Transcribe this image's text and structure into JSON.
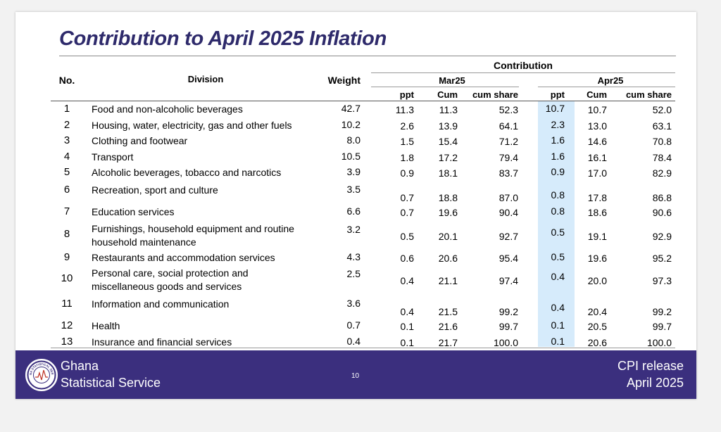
{
  "title": "Contribution to April 2025 Inflation",
  "headers": {
    "no": "No.",
    "division": "Division",
    "weight": "Weight",
    "contribution": "Contribution",
    "period1": "Mar25",
    "period2": "Apr25",
    "ppt": "ppt",
    "cum": "Cum",
    "cum_share": "cum share"
  },
  "rows": [
    {
      "no": "1",
      "division": [
        "Food and non-alcoholic beverages"
      ],
      "weight": "42.7",
      "mar": [
        "11.3",
        "11.3",
        "52.3"
      ],
      "apr": [
        "10.7",
        "10.7",
        "52.0"
      ]
    },
    {
      "no": "2",
      "division": [
        "Housing, water, electricity, gas and other fuels"
      ],
      "weight": "10.2",
      "mar": [
        "2.6",
        "13.9",
        "64.1"
      ],
      "apr": [
        "2.3",
        "13.0",
        "63.1"
      ]
    },
    {
      "no": "3",
      "division": [
        "Clothing and footwear"
      ],
      "weight": "8.0",
      "mar": [
        "1.5",
        "15.4",
        "71.2"
      ],
      "apr": [
        "1.6",
        "14.6",
        "70.8"
      ]
    },
    {
      "no": "4",
      "division": [
        "Transport"
      ],
      "weight": "10.5",
      "mar": [
        "1.8",
        "17.2",
        "79.4"
      ],
      "apr": [
        "1.6",
        "16.1",
        "78.4"
      ]
    },
    {
      "no": "5",
      "division": [
        "Alcoholic beverages, tobacco and narcotics"
      ],
      "weight": "3.9",
      "mar": [
        "0.9",
        "18.1",
        "83.7"
      ],
      "apr": [
        "0.9",
        "17.0",
        "82.9"
      ]
    },
    {
      "no": "6",
      "division": [
        "Recreation, sport and culture"
      ],
      "weight": "3.5",
      "mar": [
        "0.7",
        "18.8",
        "87.0"
      ],
      "apr": [
        "0.8",
        "17.8",
        "86.8"
      ]
    },
    {
      "no": "7",
      "division": [
        "Education services"
      ],
      "weight": "6.6",
      "mar": [
        "0.7",
        "19.6",
        "90.4"
      ],
      "apr": [
        "0.8",
        "18.6",
        "90.6"
      ]
    },
    {
      "no": "8",
      "division": [
        "Furnishings, household equipment and routine",
        "household maintenance"
      ],
      "weight": "3.2",
      "mar": [
        "0.5",
        "20.1",
        "92.7"
      ],
      "apr": [
        "0.5",
        "19.1",
        "92.9"
      ]
    },
    {
      "no": "9",
      "division": [
        "Restaurants and accommodation services"
      ],
      "weight": "4.3",
      "mar": [
        "0.6",
        "20.6",
        "95.4"
      ],
      "apr": [
        "0.5",
        "19.6",
        "95.2"
      ]
    },
    {
      "no": "10",
      "division": [
        "Personal care, social protection and",
        "miscellaneous goods and services"
      ],
      "weight": "2.5",
      "mar": [
        "0.4",
        "21.1",
        "97.4"
      ],
      "apr": [
        "0.4",
        "20.0",
        "97.3"
      ]
    },
    {
      "no": "11",
      "division": [
        "Information and communication"
      ],
      "weight": "3.6",
      "mar": [
        "0.4",
        "21.5",
        "99.2"
      ],
      "apr": [
        "0.4",
        "20.4",
        "99.2"
      ]
    },
    {
      "no": "12",
      "division": [
        "Health"
      ],
      "weight": "0.7",
      "mar": [
        "0.1",
        "21.6",
        "99.7"
      ],
      "apr": [
        "0.1",
        "20.5",
        "99.7"
      ]
    },
    {
      "no": "13",
      "division": [
        "Insurance and financial services"
      ],
      "weight": "0.4",
      "mar": [
        "0.1",
        "21.7",
        "100.0"
      ],
      "apr": [
        "0.1",
        "20.6",
        "100.0"
      ]
    }
  ],
  "footer": {
    "org_line1": "Ghana",
    "org_line2": "Statistical Service",
    "logo_text": "GHANA STATISTICAL SERVICE",
    "page_number": "10",
    "release_line1": "CPI release",
    "release_line2": "April  2025"
  },
  "colors": {
    "title": "#2e2a6b",
    "footer_bg": "#3b2f7e",
    "highlight": "#d6ebfb"
  }
}
